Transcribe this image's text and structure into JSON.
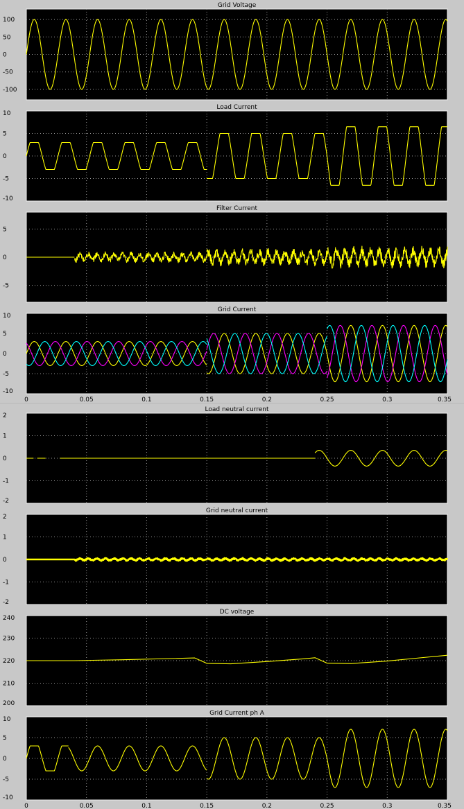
{
  "chart_data": [
    {
      "type": "line",
      "title": "Grid Voltage",
      "xlim": [
        0,
        0.35
      ],
      "ylim": [
        -130,
        130
      ],
      "y_ticks": [
        "100",
        "50",
        "0",
        "-50",
        "-100"
      ],
      "y_tick_values": [
        100,
        50,
        0,
        -50,
        -100
      ],
      "x_ticks": [],
      "series": [
        {
          "color": "#ffff00",
          "segments": [
            {
              "t0": 0,
              "t1": 0.35,
              "shape": "sine",
              "amp": 100,
              "freq": 38,
              "phase": 0
            }
          ]
        }
      ]
    },
    {
      "type": "line",
      "title": "Load Current",
      "xlim": [
        0,
        0.35
      ],
      "ylim": [
        -10,
        10
      ],
      "y_ticks": [
        "10",
        "5",
        "0",
        "-5",
        "-10"
      ],
      "y_tick_values": [
        10,
        5,
        0,
        -5,
        -10
      ],
      "x_ticks": [],
      "series": [
        {
          "color": "#ffff00",
          "segments": [
            {
              "t0": 0,
              "t1": 0.15,
              "shape": "flat-top",
              "amp": 3,
              "freq": 38,
              "phase": 0
            },
            {
              "t0": 0.15,
              "t1": 0.25,
              "shape": "flat-top",
              "amp": 5,
              "freq": 38,
              "phase": 0
            },
            {
              "t0": 0.25,
              "t1": 0.35,
              "shape": "flat-top",
              "amp": 6.5,
              "freq": 38,
              "phase": 0
            }
          ]
        }
      ]
    },
    {
      "type": "line",
      "title": "Filter Current",
      "xlim": [
        0,
        0.35
      ],
      "ylim": [
        -8,
        8
      ],
      "y_ticks": [
        "5",
        "0",
        "-5"
      ],
      "y_tick_values": [
        5,
        0,
        -5
      ],
      "x_ticks": [],
      "series": [
        {
          "color": "#ffff00",
          "segments": [
            {
              "t0": 0,
              "t1": 0.04,
              "shape": "flat",
              "amp": 0,
              "freq": 38,
              "phase": 0
            },
            {
              "t0": 0.04,
              "t1": 0.15,
              "shape": "noise",
              "amp": 1,
              "freq": 38,
              "phase": 0
            },
            {
              "t0": 0.15,
              "t1": 0.25,
              "shape": "noise",
              "amp": 1.6,
              "freq": 38,
              "phase": 0
            },
            {
              "t0": 0.25,
              "t1": 0.35,
              "shape": "noise",
              "amp": 2,
              "freq": 38,
              "phase": 0
            }
          ]
        }
      ]
    },
    {
      "type": "line",
      "title": "Grid Current",
      "xlim": [
        0,
        0.35
      ],
      "ylim": [
        -10,
        10
      ],
      "y_ticks": [
        "10",
        "5",
        "0",
        "-5",
        "-10"
      ],
      "y_tick_values": [
        10,
        5,
        0,
        -5,
        -10
      ],
      "x_ticks": [
        "0",
        "0.05",
        "0.1",
        "0.15",
        "0.2",
        "0.25",
        "0.3",
        "0.35"
      ],
      "x_tick_values": [
        0,
        0.05,
        0.1,
        0.15,
        0.2,
        0.25,
        0.3,
        0.35
      ],
      "series": [
        {
          "color": "#ffff00",
          "segments": [
            {
              "t0": 0,
              "t1": 0.15,
              "shape": "sine",
              "amp": 3,
              "freq": 38,
              "phase": 0
            },
            {
              "t0": 0.15,
              "t1": 0.25,
              "shape": "sine",
              "amp": 5,
              "freq": 38,
              "phase": 0
            },
            {
              "t0": 0.25,
              "t1": 0.35,
              "shape": "sine",
              "amp": 7,
              "freq": 38,
              "phase": 0
            }
          ]
        },
        {
          "color": "#ff00ff",
          "segments": [
            {
              "t0": 0,
              "t1": 0.15,
              "shape": "sine",
              "amp": 3,
              "freq": 38,
              "phase": 2.094
            },
            {
              "t0": 0.15,
              "t1": 0.25,
              "shape": "sine",
              "amp": 5,
              "freq": 38,
              "phase": 2.094
            },
            {
              "t0": 0.25,
              "t1": 0.35,
              "shape": "sine",
              "amp": 7,
              "freq": 38,
              "phase": 2.094
            }
          ]
        },
        {
          "color": "#00ffff",
          "segments": [
            {
              "t0": 0,
              "t1": 0.15,
              "shape": "sine",
              "amp": 3,
              "freq": 38,
              "phase": 4.189
            },
            {
              "t0": 0.15,
              "t1": 0.25,
              "shape": "sine",
              "amp": 5,
              "freq": 38,
              "phase": 4.189
            },
            {
              "t0": 0.25,
              "t1": 0.35,
              "shape": "sine",
              "amp": 7,
              "freq": 38,
              "phase": 4.189
            }
          ]
        }
      ]
    },
    {
      "type": "line",
      "title": "Load neutral current",
      "xlim": [
        0,
        0.35
      ],
      "ylim": [
        -2,
        2
      ],
      "y_ticks": [
        "2",
        "1",
        "0",
        "-1",
        "-2"
      ],
      "y_tick_values": [
        2,
        1,
        0,
        -1,
        -2
      ],
      "x_ticks": [],
      "series": [
        {
          "color": "#ffff00",
          "segments": [
            {
              "t0": 0,
              "t1": 0.006,
              "shape": "flat",
              "amp": 0,
              "freq": 38,
              "phase": 0
            },
            {
              "t0": 0.009,
              "t1": 0.016,
              "shape": "flat",
              "amp": 0,
              "freq": 38,
              "phase": 0
            },
            {
              "t0": 0.028,
              "t1": 0.24,
              "shape": "flat",
              "amp": 0,
              "freq": 38,
              "phase": 0
            },
            {
              "t0": 0.24,
              "t1": 0.35,
              "shape": "sine",
              "amp": 0.35,
              "freq": 38,
              "phase": 0
            }
          ]
        }
      ]
    },
    {
      "type": "line",
      "title": "Grid neutral current",
      "xlim": [
        0,
        0.35
      ],
      "ylim": [
        -2,
        2
      ],
      "y_ticks": [
        "2",
        "1",
        "0",
        "-1",
        "-2"
      ],
      "y_tick_values": [
        2,
        1,
        0,
        -1,
        -2
      ],
      "x_ticks": [],
      "series": [
        {
          "color": "#ffff00",
          "segments": [
            {
              "t0": 0,
              "t1": 0.04,
              "shape": "flat",
              "amp": 0,
              "freq": 38,
              "phase": 0
            },
            {
              "t0": 0.04,
              "t1": 0.35,
              "shape": "noise",
              "amp": 0.07,
              "freq": 38,
              "phase": 0
            }
          ]
        }
      ]
    },
    {
      "type": "line",
      "title": "DC voltage",
      "xlim": [
        0,
        0.35
      ],
      "ylim": [
        200,
        240
      ],
      "y_ticks": [
        "240",
        "230",
        "220",
        "210",
        "200"
      ],
      "y_tick_values": [
        240,
        230,
        220,
        210,
        200
      ],
      "x_ticks": [],
      "series": [
        {
          "color": "#ffff00",
          "points": [
            [
              0,
              220
            ],
            [
              0.04,
              220
            ],
            [
              0.08,
              220.4
            ],
            [
              0.14,
              221.2
            ],
            [
              0.15,
              218.8
            ],
            [
              0.17,
              218.6
            ],
            [
              0.2,
              219.6
            ],
            [
              0.23,
              220.8
            ],
            [
              0.24,
              221.3
            ],
            [
              0.25,
              218.9
            ],
            [
              0.27,
              218.7
            ],
            [
              0.3,
              219.8
            ],
            [
              0.33,
              221.4
            ],
            [
              0.35,
              222.4
            ]
          ]
        }
      ]
    },
    {
      "type": "line",
      "title": "Grid Current ph A",
      "xlim": [
        0,
        0.35
      ],
      "ylim": [
        -10,
        10
      ],
      "y_ticks": [
        "10",
        "5",
        "0",
        "-5",
        "-10"
      ],
      "y_tick_values": [
        10,
        5,
        0,
        -5,
        -10
      ],
      "x_ticks": [
        "0",
        "0.05",
        "0.1",
        "0.15",
        "0.2",
        "0.25",
        "0.3",
        "0.35"
      ],
      "x_tick_values": [
        0,
        0.05,
        0.1,
        0.15,
        0.2,
        0.25,
        0.3,
        0.35
      ],
      "series": [
        {
          "color": "#ffff00",
          "segments": [
            {
              "t0": 0,
              "t1": 0.035,
              "shape": "flat-top",
              "amp": 3,
              "freq": 38,
              "phase": 0
            },
            {
              "t0": 0.035,
              "t1": 0.15,
              "shape": "sine",
              "amp": 3,
              "freq": 38,
              "phase": 0
            },
            {
              "t0": 0.15,
              "t1": 0.25,
              "shape": "sine",
              "amp": 5,
              "freq": 38,
              "phase": 0
            },
            {
              "t0": 0.25,
              "t1": 0.35,
              "shape": "sine",
              "amp": 7,
              "freq": 38,
              "phase": 0
            }
          ]
        }
      ]
    }
  ]
}
